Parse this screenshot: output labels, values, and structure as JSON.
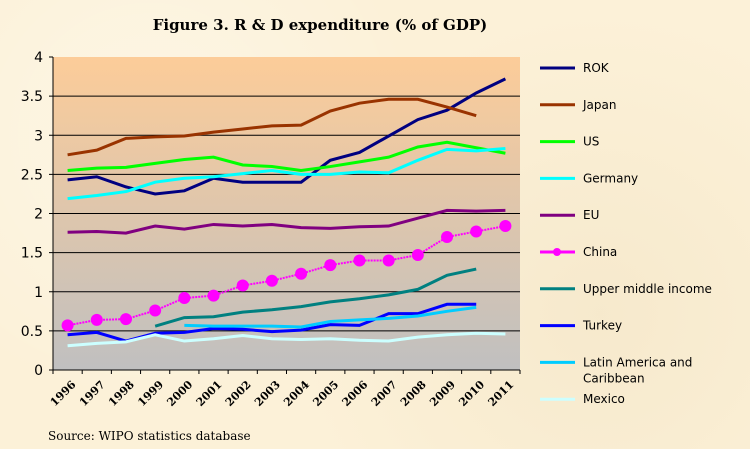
{
  "chart_data": {
    "type": "line",
    "title": "Figure 3. R & D expenditure (% of GDP)",
    "source": "Source: WIPO statistics database",
    "xlabel": "",
    "ylabel": "",
    "ylim": [
      0,
      4
    ],
    "yticks": [
      "0",
      "0.5",
      "1",
      "1.5",
      "2",
      "2.5",
      "3",
      "3.5",
      "4"
    ],
    "categories": [
      "1996",
      "1997",
      "1998",
      "1999",
      "2000",
      "2001",
      "2002",
      "2003",
      "2004",
      "2005",
      "2006",
      "2007",
      "2008",
      "2009",
      "2010",
      "2011"
    ],
    "grid": true,
    "legend": "right",
    "series": [
      {
        "name": "ROK",
        "color": "#000080",
        "values": [
          2.43,
          2.47,
          2.34,
          2.25,
          2.29,
          2.45,
          2.4,
          2.4,
          2.4,
          2.68,
          2.78,
          2.99,
          3.2,
          3.32,
          3.54,
          3.72
        ]
      },
      {
        "name": "Japan",
        "color": "#993300",
        "values": [
          2.75,
          2.81,
          2.96,
          2.98,
          2.99,
          3.04,
          3.08,
          3.12,
          3.13,
          3.31,
          3.41,
          3.46,
          3.46,
          3.36,
          3.25,
          null
        ]
      },
      {
        "name": "US",
        "color": "#00ff00",
        "values": [
          2.55,
          2.58,
          2.59,
          2.64,
          2.69,
          2.72,
          2.62,
          2.6,
          2.55,
          2.6,
          2.66,
          2.72,
          2.85,
          2.91,
          2.84,
          2.77
        ]
      },
      {
        "name": "Germany",
        "color": "#00ffff",
        "values": [
          2.19,
          2.23,
          2.28,
          2.4,
          2.45,
          2.47,
          2.51,
          2.55,
          2.5,
          2.5,
          2.53,
          2.52,
          2.68,
          2.82,
          2.8,
          2.83
        ]
      },
      {
        "name": "EU",
        "color": "#800080",
        "values": [
          1.76,
          1.77,
          1.75,
          1.84,
          1.8,
          1.86,
          1.84,
          1.86,
          1.82,
          1.81,
          1.83,
          1.84,
          1.94,
          2.04,
          2.03,
          2.04
        ]
      },
      {
        "name": "China",
        "color": "#ff00ff",
        "marker": "circle",
        "values": [
          0.57,
          0.64,
          0.65,
          0.76,
          0.92,
          0.95,
          1.08,
          1.14,
          1.23,
          1.34,
          1.4,
          1.4,
          1.47,
          1.7,
          1.77,
          1.84
        ]
      },
      {
        "name": "Upper middle income",
        "color": "#008080",
        "values": [
          null,
          null,
          null,
          0.56,
          0.67,
          0.68,
          0.74,
          0.77,
          0.81,
          0.87,
          0.91,
          0.96,
          1.03,
          1.21,
          1.29,
          null
        ]
      },
      {
        "name": "Turkey",
        "color": "#0000ff",
        "values": [
          0.45,
          0.48,
          0.37,
          0.47,
          0.48,
          0.53,
          0.52,
          0.49,
          0.51,
          0.58,
          0.57,
          0.72,
          0.72,
          0.84,
          0.84,
          null
        ]
      },
      {
        "name": "Latin America and Caribbean",
        "color": "#00ccff",
        "values": [
          null,
          null,
          null,
          null,
          0.57,
          0.56,
          0.56,
          0.56,
          0.55,
          0.62,
          0.64,
          0.66,
          0.69,
          0.75,
          0.8,
          null
        ]
      },
      {
        "name": "Mexico",
        "color": "#ccffff",
        "values": [
          0.31,
          0.34,
          0.36,
          0.45,
          0.37,
          0.4,
          0.44,
          0.4,
          0.39,
          0.4,
          0.38,
          0.37,
          0.42,
          0.45,
          0.47,
          0.46
        ]
      }
    ],
    "legend_labels": [
      [
        "ROK"
      ],
      [
        "Japan"
      ],
      [
        "US"
      ],
      [
        "Germany"
      ],
      [
        "EU"
      ],
      [
        "China"
      ],
      [
        "Upper middle income"
      ],
      [
        "Turkey"
      ],
      [
        "Latin America and",
        "Caribbean"
      ],
      [
        "Mexico"
      ]
    ]
  }
}
